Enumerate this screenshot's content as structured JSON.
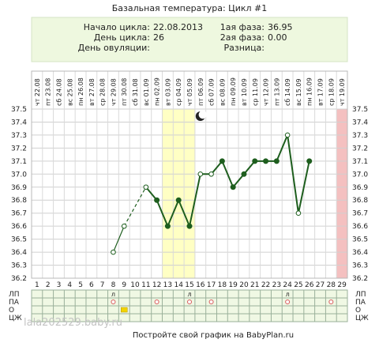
{
  "title": "Базальная температура: Цикл #1",
  "info": {
    "cycle_start_label": "Начало цикла:",
    "cycle_start_value": "22.08.2013",
    "cycle_day_label": "День цикла:",
    "cycle_day_value": "26",
    "ovulation_day_label": "День овуляции:",
    "ovulation_day_value": "",
    "phase1_label": "1ая фаза:",
    "phase1_value": "36.95",
    "phase2_label": "2ая фаза:",
    "phase2_value": "0.00",
    "difference_label": "Разница:",
    "difference_value": ""
  },
  "chart_data": {
    "type": "line",
    "dates": [
      "22.08",
      "23.08",
      "24.08",
      "25.08",
      "26.08",
      "27.08",
      "28.08",
      "29.08",
      "30.08",
      "31.08",
      "01.09",
      "02.09",
      "03.09",
      "04.09",
      "05.09",
      "06.09",
      "07.09",
      "08.09",
      "09.09",
      "10.09",
      "11.09",
      "12.09",
      "13.09",
      "14.09",
      "15.09",
      "16.09",
      "17.09",
      "18.09",
      "19.09"
    ],
    "weekdays": [
      "чт",
      "пт",
      "сб",
      "вс",
      "пн",
      "вт",
      "ср",
      "чт",
      "пт",
      "сб",
      "вс",
      "пн",
      "вт",
      "ср",
      "чт",
      "пт",
      "сб",
      "вс",
      "пн",
      "вт",
      "ср",
      "чт",
      "пт",
      "сб",
      "вс",
      "пн",
      "вт",
      "ср",
      "чт"
    ],
    "days": [
      1,
      2,
      3,
      4,
      5,
      6,
      7,
      8,
      9,
      10,
      11,
      12,
      13,
      14,
      15,
      16,
      17,
      18,
      19,
      20,
      21,
      22,
      23,
      24,
      25,
      26,
      27,
      28,
      29
    ],
    "y_ticks": [
      "37.5",
      "37.4",
      "37.3",
      "37.2",
      "37.1",
      "37.0",
      "36.9",
      "36.8",
      "36.7",
      "36.6",
      "36.5",
      "36.4",
      "36.3",
      "36.2"
    ],
    "ylim": [
      36.2,
      37.5
    ],
    "temperatures": [
      null,
      null,
      null,
      null,
      null,
      null,
      null,
      36.4,
      36.6,
      null,
      36.9,
      36.8,
      36.6,
      36.8,
      36.6,
      37.0,
      37.0,
      37.1,
      36.9,
      37.0,
      37.1,
      37.1,
      37.1,
      37.3,
      36.7,
      37.1,
      null,
      null,
      null
    ],
    "open_markers": [
      8,
      9,
      11,
      16,
      17,
      24,
      25
    ],
    "dashed_segments": [
      [
        9,
        11
      ]
    ],
    "solid_segments": [
      [
        11,
        15
      ],
      [
        15,
        26
      ]
    ],
    "highlight_days": [
      13,
      14,
      15
    ],
    "today_day": 29,
    "moon_day": 16,
    "bottom_rows": [
      "ЛП",
      "ПА",
      "О",
      "ЦЖ"
    ],
    "row_marks": {
      "lp": [
        8,
        15,
        24
      ],
      "pa": [
        8,
        12,
        15,
        17,
        24,
        28
      ],
      "o": [
        9
      ]
    },
    "colors": {
      "line": "#1e5e1e",
      "highlight": "#ffffc4",
      "today": "#f4c0c0",
      "header_bg": "#eef8df",
      "rows_bg": "#f0f8e4",
      "pa_mark": "#d85a5a",
      "o_mark": "#f2d400"
    }
  },
  "footer": "Постройте свой график на BabyPlan.ru",
  "watermark": "lala202529.baby.ru"
}
